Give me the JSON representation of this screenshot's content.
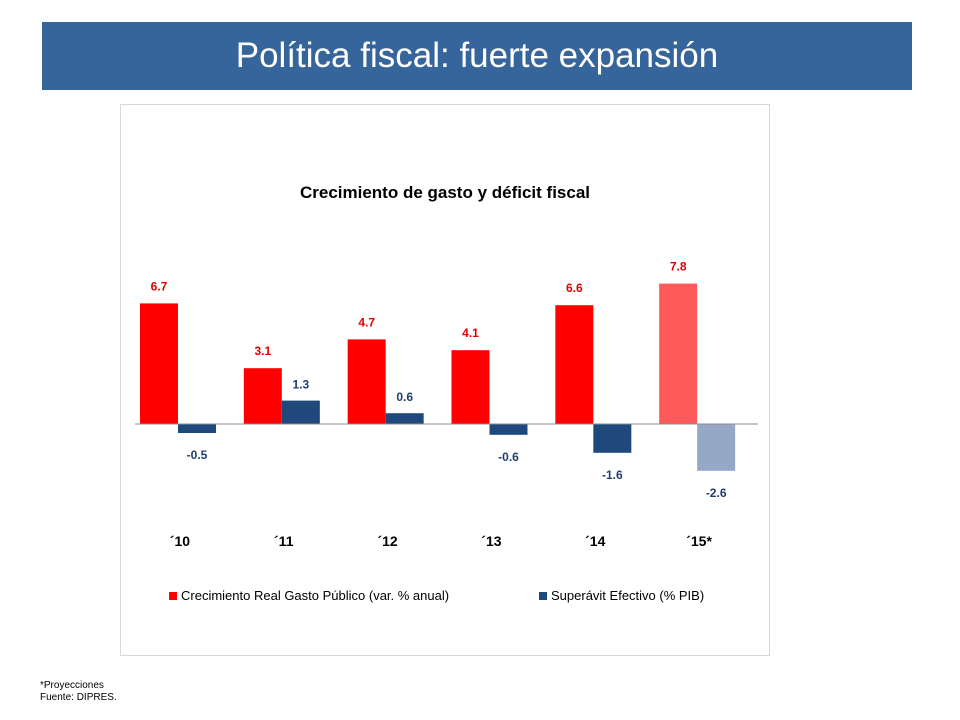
{
  "slide": {
    "title": "Política fiscal: fuerte expansión",
    "banner_color": "#35659a"
  },
  "footnotes": {
    "projection_note": "*Proyecciones",
    "source": "Fuente: DIPRES."
  },
  "chart_data": {
    "type": "bar",
    "title": "Crecimiento de gasto y déficit fiscal",
    "xlabel": "",
    "ylabel": "",
    "categories": [
      "´10",
      "´11",
      "´12",
      "´13",
      "´14",
      "´15*"
    ],
    "series": [
      {
        "name": "Crecimiento Real Gasto Público (var. % anual)",
        "values": [
          6.7,
          3.1,
          4.7,
          4.1,
          6.6,
          7.8
        ],
        "labels": [
          "6.7",
          "3.1",
          "4.7",
          "4.1",
          "6.6",
          "7.8"
        ],
        "color": "#ff0000",
        "projection_color": "#ff5a5a",
        "label_color": "#e00000"
      },
      {
        "name": "Superávit Efectivo (% PIB)",
        "values": [
          -0.5,
          1.3,
          0.6,
          -0.6,
          -1.6,
          -2.6
        ],
        "labels": [
          "-0.5",
          "1.3",
          "0.6",
          "-0.6",
          "-1.6",
          "-2.6"
        ],
        "color": "#1f497d",
        "projection_color": "#95a9c6",
        "label_color": "#1f3e6b"
      }
    ],
    "projected_categories": [
      "´15*"
    ],
    "ylim": [
      -2.6,
      7.8
    ],
    "legend_position": "bottom",
    "grid": false
  }
}
